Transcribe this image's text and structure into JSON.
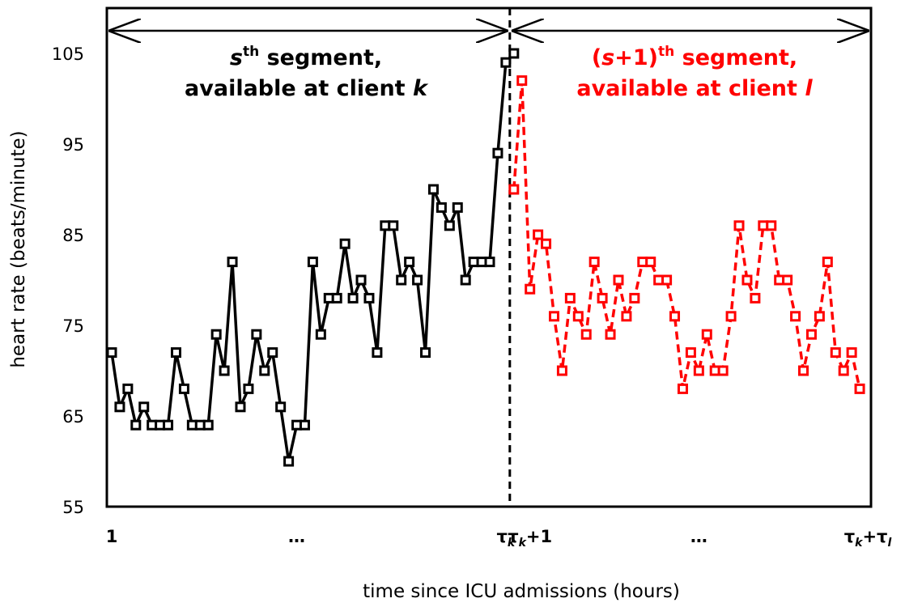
{
  "chart_data": {
    "type": "line",
    "xlabel": "time since ICU admissions (hours)",
    "ylabel": "heart rate (beats/minute)",
    "ylim": [
      55,
      105
    ],
    "yticks": [
      105,
      95,
      85,
      75,
      65,
      55
    ],
    "xticks": [
      {
        "x": 1,
        "label": "1"
      },
      {
        "x": 24,
        "label": "…"
      },
      {
        "x": 50,
        "label": "τ",
        "sub": "k",
        "suffix": ""
      },
      {
        "x": 53,
        "label": "τ",
        "sub": "k",
        "suffix": "+1"
      },
      {
        "x": 74,
        "label": "…"
      },
      {
        "x": 95,
        "label": "τ",
        "sub": "k",
        "suffix": "+τ",
        "sub2": "l"
      }
    ],
    "boundary_x": 51,
    "segments": [
      {
        "label_line1_pre": "",
        "label_var": "s",
        "label_sup": "th",
        "label_line1_post": " segment,",
        "label_line2_pre": "available at client ",
        "label_line2_var": "k",
        "color": "#000000",
        "dashed": false,
        "x_start": 1,
        "values": [
          72,
          66,
          68,
          64,
          66,
          64,
          64,
          64,
          72,
          68,
          64,
          64,
          64,
          74,
          70,
          82,
          66,
          68,
          74,
          70,
          72,
          66,
          60,
          64,
          64,
          82,
          74,
          78,
          78,
          84,
          78,
          80,
          78,
          72,
          86,
          86,
          80,
          82,
          80,
          72,
          90,
          88,
          86,
          88,
          80,
          82,
          82,
          82,
          94,
          104,
          105
        ]
      },
      {
        "label_line1_pre": "(",
        "label_var": "s",
        "label_plus": "+1)",
        "label_sup": "th",
        "label_line1_post": " segment,",
        "label_line2_pre": "available at client ",
        "label_line2_var": "l",
        "color": "#ff0000",
        "dashed": true,
        "x_start": 51,
        "values": [
          90,
          102,
          79,
          85,
          84,
          76,
          70,
          78,
          76,
          74,
          82,
          78,
          74,
          80,
          76,
          78,
          82,
          82,
          80,
          80,
          76,
          68,
          72,
          70,
          74,
          70,
          70,
          76,
          86,
          80,
          78,
          86,
          86,
          80,
          80,
          76,
          70,
          74,
          76,
          82,
          72,
          70,
          72,
          68
        ]
      }
    ]
  }
}
